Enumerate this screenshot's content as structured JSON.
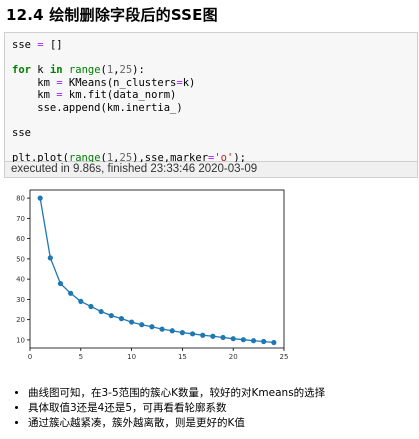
{
  "heading": "12.4  绘制删除字段后的SSE图",
  "code_lines": [
    [
      {
        "t": "sse "
      },
      {
        "t": "=",
        "c": "op"
      },
      {
        "t": " []"
      }
    ],
    [],
    [
      {
        "t": "for",
        "c": "kw"
      },
      {
        "t": " k "
      },
      {
        "t": "in",
        "c": "kw"
      },
      {
        "t": " "
      },
      {
        "t": "range",
        "c": "bi"
      },
      {
        "t": "("
      },
      {
        "t": "1",
        "c": "num"
      },
      {
        "t": ","
      },
      {
        "t": "25",
        "c": "num"
      },
      {
        "t": "):"
      }
    ],
    [
      {
        "t": "    km "
      },
      {
        "t": "=",
        "c": "op"
      },
      {
        "t": " KMeans(n_clusters"
      },
      {
        "t": "=",
        "c": "op"
      },
      {
        "t": "k)"
      }
    ],
    [
      {
        "t": "    km "
      },
      {
        "t": "=",
        "c": "op"
      },
      {
        "t": " km.fit(data_norm)"
      }
    ],
    [
      {
        "t": "    sse.append(km.inertia_)"
      }
    ],
    [],
    [
      {
        "t": "sse"
      }
    ],
    [],
    [
      {
        "t": "plt.plot("
      },
      {
        "t": "range",
        "c": "bi"
      },
      {
        "t": "("
      },
      {
        "t": "1",
        "c": "num"
      },
      {
        "t": ","
      },
      {
        "t": "25",
        "c": "num"
      },
      {
        "t": "),sse,marker"
      },
      {
        "t": "=",
        "c": "op"
      },
      {
        "t": "'o'",
        "c": "str"
      },
      {
        "t": ");"
      }
    ]
  ],
  "exec_status": "executed in 9.86s, finished 23:33:46 2020-03-09",
  "chart_data": {
    "type": "line",
    "x": [
      1,
      2,
      3,
      4,
      5,
      6,
      7,
      8,
      9,
      10,
      11,
      12,
      13,
      14,
      15,
      16,
      17,
      18,
      19,
      20,
      21,
      22,
      23,
      24
    ],
    "series": [
      {
        "values": [
          80.0,
          50.5,
          37.8,
          33.0,
          29.0,
          26.5,
          24.0,
          22.0,
          20.5,
          18.8,
          17.5,
          16.5,
          15.3,
          14.5,
          13.6,
          13.0,
          12.3,
          11.8,
          11.2,
          10.6,
          10.1,
          9.6,
          9.2,
          8.7
        ]
      }
    ],
    "xlim": [
      0,
      25
    ],
    "ylim": [
      6,
      84
    ],
    "xticks": [
      0,
      5,
      10,
      15,
      20,
      25
    ],
    "yticks": [
      10,
      20,
      30,
      40,
      50,
      60,
      70,
      80
    ],
    "title": "",
    "xlabel": "",
    "ylabel": "",
    "marker": "o",
    "grid": false,
    "line_color": "#1f77b4"
  },
  "bullets": [
    "曲线图可知，在3-5范围的簇心K数量，较好的对Kmeans的选择",
    "具体取值3还是4还是5，可再看看轮廓系数",
    "通过簇心越紧凑，簇外越离散，则是更好的K值"
  ]
}
